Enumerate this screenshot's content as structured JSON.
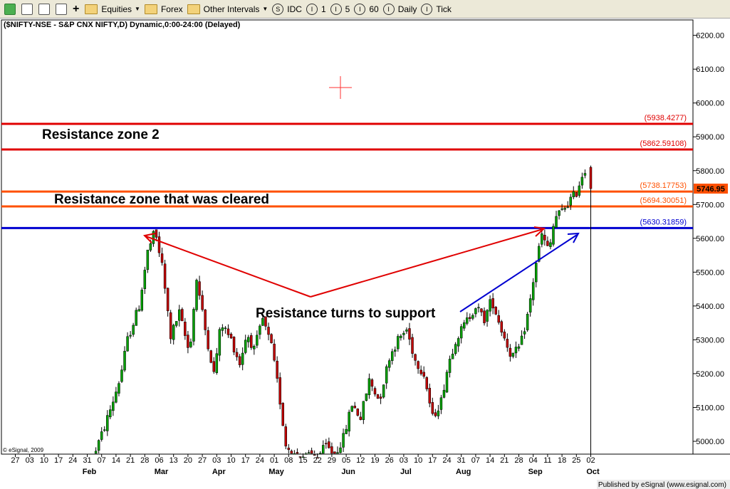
{
  "toolbar": {
    "items": [
      {
        "label": "Equities",
        "dropdown": true
      },
      {
        "label": "Forex",
        "dropdown": false
      },
      {
        "label": "Other Intervals",
        "dropdown": true
      }
    ],
    "intervals": [
      {
        "glyph": "S",
        "label": "IDC"
      },
      {
        "glyph": "I",
        "label": "1"
      },
      {
        "glyph": "I",
        "label": "5"
      },
      {
        "glyph": "I",
        "label": "60"
      },
      {
        "glyph": "I",
        "label": "Daily"
      },
      {
        "glyph": "I",
        "label": "Tick"
      }
    ]
  },
  "chart_title": "($NIFTY-NSE - S&P CNX NIFTY,D) Dynamic,0:00-24:00 (Delayed)",
  "copyright": "© eSignal, 2009",
  "footer": "Published by eSignal (www.esignal.com)",
  "chart_data": {
    "type": "candlestick",
    "ylim": [
      4950,
      6250
    ],
    "y_ticks": [
      5000,
      5100,
      5200,
      5300,
      5400,
      5500,
      5600,
      5700,
      5800,
      5900,
      6000,
      6100,
      6200
    ],
    "y_tick_labels": [
      "5000.00",
      "5100.00",
      "5200.00",
      "5300.00",
      "5400.00",
      "5500.00",
      "5600.00",
      "5700.00",
      "5800.00",
      "5900.00",
      "6000.00",
      "6100.00",
      "6200.00"
    ],
    "x_day_labels": [
      "27",
      "03",
      "10",
      "17",
      "24",
      "31",
      "07",
      "14",
      "21",
      "28",
      "06",
      "13",
      "20",
      "27",
      "03",
      "10",
      "17",
      "24",
      "01",
      "08",
      "15",
      "22",
      "29",
      "05",
      "12",
      "19",
      "26",
      "03",
      "10",
      "17",
      "24",
      "31",
      "07",
      "14",
      "21",
      "28",
      "04",
      "11",
      "18",
      "25",
      "02"
    ],
    "x_month_labels": [
      {
        "label": "Feb",
        "at_day_index": 5
      },
      {
        "label": "Mar",
        "at_day_index": 10
      },
      {
        "label": "Apr",
        "at_day_index": 14
      },
      {
        "label": "May",
        "at_day_index": 18
      },
      {
        "label": "Jun",
        "at_day_index": 23
      },
      {
        "label": "Jul",
        "at_day_index": 27
      },
      {
        "label": "Aug",
        "at_day_index": 31
      },
      {
        "label": "Sep",
        "at_day_index": 36
      },
      {
        "label": "Oct",
        "at_day_index": 40
      }
    ],
    "levels": [
      {
        "value": 5938.4277,
        "label": "(5938.4277)",
        "color": "#e00000"
      },
      {
        "value": 5862.59108,
        "label": "(5862.59108)",
        "color": "#e00000"
      },
      {
        "value": 5738.17753,
        "label": "(5738.17753)",
        "color": "#ff5000"
      },
      {
        "value": 5694.30051,
        "label": "(5694.30051)",
        "color": "#ff5000"
      },
      {
        "value": 5630.31859,
        "label": "(5630.31859)",
        "color": "#0000d0"
      }
    ],
    "last_price": {
      "value": 5746.95,
      "label": "5746.95",
      "color": "#ff5000"
    },
    "candle_up_color": "#00a000",
    "candle_down_color": "#c00000",
    "path_anchors": [
      {
        "day_index": 5.6,
        "price": 4955
      },
      {
        "day_index": 6.3,
        "price": 5030
      },
      {
        "day_index": 7.0,
        "price": 5120
      },
      {
        "day_index": 7.5,
        "price": 5190
      },
      {
        "day_index": 8.0,
        "price": 5300
      },
      {
        "day_index": 8.8,
        "price": 5400
      },
      {
        "day_index": 9.4,
        "price": 5560
      },
      {
        "day_index": 9.9,
        "price": 5620
      },
      {
        "day_index": 10.4,
        "price": 5520
      },
      {
        "day_index": 11.0,
        "price": 5310
      },
      {
        "day_index": 11.6,
        "price": 5380
      },
      {
        "day_index": 12.3,
        "price": 5260
      },
      {
        "day_index": 12.8,
        "price": 5480
      },
      {
        "day_index": 13.4,
        "price": 5330
      },
      {
        "day_index": 14.0,
        "price": 5200
      },
      {
        "day_index": 14.5,
        "price": 5350
      },
      {
        "day_index": 15.2,
        "price": 5300
      },
      {
        "day_index": 15.8,
        "price": 5230
      },
      {
        "day_index": 16.3,
        "price": 5320
      },
      {
        "day_index": 16.8,
        "price": 5270
      },
      {
        "day_index": 17.4,
        "price": 5360
      },
      {
        "day_index": 18.0,
        "price": 5280
      },
      {
        "day_index": 18.5,
        "price": 5150
      },
      {
        "day_index": 19.0,
        "price": 4990
      },
      {
        "day_index": 19.6,
        "price": 4960
      },
      {
        "day_index": 20.4,
        "price": 4955
      },
      {
        "day_index": 21.2,
        "price": 4955
      },
      {
        "day_index": 21.8,
        "price": 4985
      },
      {
        "day_index": 22.4,
        "price": 4960
      },
      {
        "day_index": 23.0,
        "price": 5010
      },
      {
        "day_index": 23.6,
        "price": 5110
      },
      {
        "day_index": 24.2,
        "price": 5070
      },
      {
        "day_index": 24.8,
        "price": 5180
      },
      {
        "day_index": 25.5,
        "price": 5120
      },
      {
        "day_index": 26.2,
        "price": 5250
      },
      {
        "day_index": 26.8,
        "price": 5300
      },
      {
        "day_index": 27.4,
        "price": 5330
      },
      {
        "day_index": 28.0,
        "price": 5240
      },
      {
        "day_index": 28.6,
        "price": 5200
      },
      {
        "day_index": 29.2,
        "price": 5070
      },
      {
        "day_index": 29.8,
        "price": 5120
      },
      {
        "day_index": 30.3,
        "price": 5230
      },
      {
        "day_index": 30.8,
        "price": 5300
      },
      {
        "day_index": 31.5,
        "price": 5350
      },
      {
        "day_index": 32.2,
        "price": 5400
      },
      {
        "day_index": 32.8,
        "price": 5360
      },
      {
        "day_index": 33.3,
        "price": 5420
      },
      {
        "day_index": 34.0,
        "price": 5330
      },
      {
        "day_index": 34.7,
        "price": 5250
      },
      {
        "day_index": 35.3,
        "price": 5280
      },
      {
        "day_index": 35.9,
        "price": 5390
      },
      {
        "day_index": 36.4,
        "price": 5530
      },
      {
        "day_index": 36.8,
        "price": 5610
      },
      {
        "day_index": 37.3,
        "price": 5560
      },
      {
        "day_index": 37.7,
        "price": 5660
      },
      {
        "day_index": 38.2,
        "price": 5680
      },
      {
        "day_index": 38.7,
        "price": 5710
      },
      {
        "day_index": 39.2,
        "price": 5735
      },
      {
        "day_index": 39.7,
        "price": 5800
      }
    ],
    "last_candle": {
      "day_index": 40.0,
      "open": 5810,
      "high": 5815,
      "low": 5735,
      "close": 5746.95
    },
    "annotations": [
      {
        "text": "Resistance zone 2",
        "color": "#000000"
      },
      {
        "text": "Resistance zone that was cleared",
        "color": "#000000"
      },
      {
        "text": "Resistance turns to support",
        "color": "#000000"
      }
    ],
    "grid": false,
    "axis_position": "right"
  }
}
